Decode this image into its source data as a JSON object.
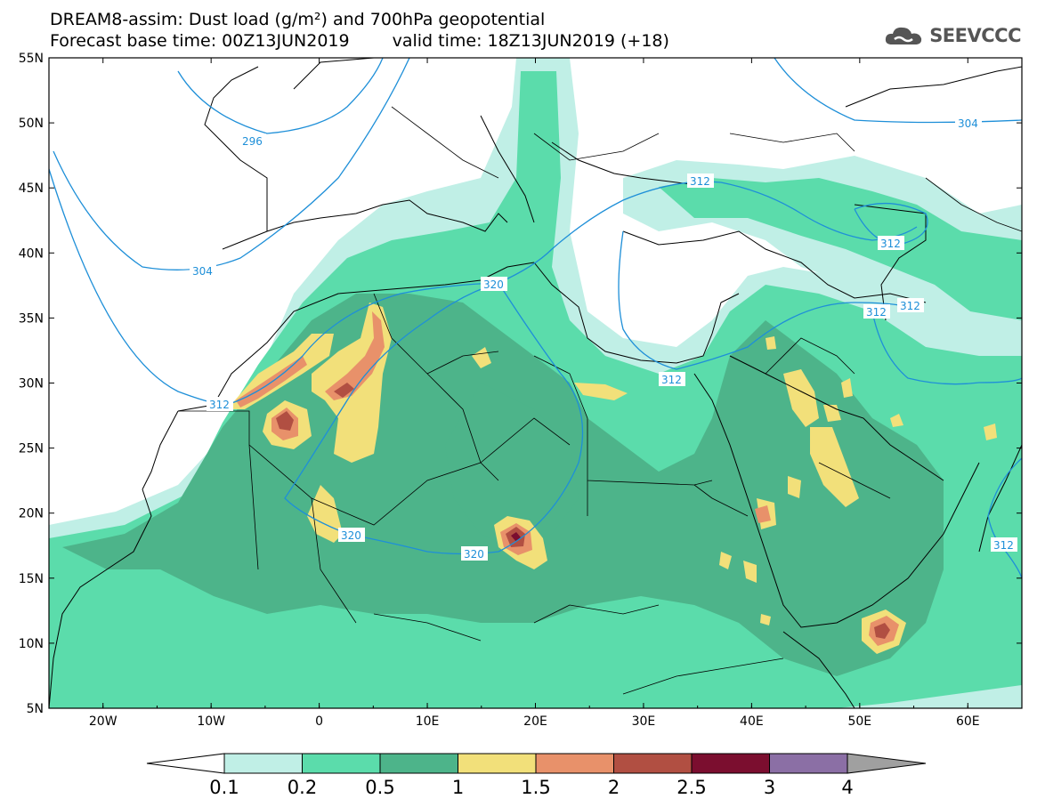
{
  "title": {
    "line1": "DREAM8-assim: Dust load (g/m²) and 700hPa geopotential",
    "line2a": "Forecast base time: 00Z13JUN2019",
    "line2b": "valid time: 18Z13JUN2019 (+18)"
  },
  "logo": {
    "text": "SEEVCCC",
    "icon": "cloud-icon"
  },
  "map": {
    "lat_labels": [
      "55N",
      "50N",
      "45N",
      "40N",
      "35N",
      "30N",
      "25N",
      "20N",
      "15N",
      "10N",
      "5N"
    ],
    "lon_labels": [
      "20W",
      "10W",
      "0",
      "10E",
      "20E",
      "30E",
      "40E",
      "50E",
      "60E"
    ],
    "lon_range": [
      -25,
      65
    ],
    "lat_range": [
      5,
      55
    ],
    "contour_labels": [
      {
        "id": "c296",
        "text": "296"
      },
      {
        "id": "c304a",
        "text": "304"
      },
      {
        "id": "c304b",
        "text": "304"
      },
      {
        "id": "c312a",
        "text": "312"
      },
      {
        "id": "c312b",
        "text": "312"
      },
      {
        "id": "c312c",
        "text": "312"
      },
      {
        "id": "c312d",
        "text": "312"
      },
      {
        "id": "c312e",
        "text": "312"
      },
      {
        "id": "c312f",
        "text": "312"
      },
      {
        "id": "c312g",
        "text": "312"
      },
      {
        "id": "c320a",
        "text": "320"
      },
      {
        "id": "c320b",
        "text": "320"
      },
      {
        "id": "c320c",
        "text": "320"
      }
    ],
    "colors": {
      "contour": "#1e8fd8",
      "level_0_1": "#c0efe6",
      "level_0_2": "#5bdcab",
      "level_0_5": "#4db48a",
      "level_1": "#f2e07a",
      "level_1_5": "#e8916a",
      "level_2": "#b14f42",
      "level_2_5": "#7b0e2f",
      "level_3": "#8b6fa5",
      "level_4": "#a0a0a0"
    }
  },
  "colorbar": {
    "labels": [
      "0.1",
      "0.2",
      "0.5",
      "1",
      "1.5",
      "2",
      "2.5",
      "3",
      "4"
    ],
    "colors": [
      "#c0efe6",
      "#5bdcab",
      "#4db48a",
      "#f2e07a",
      "#e8916a",
      "#b14f42",
      "#7b0e2f",
      "#8b6fa5"
    ]
  }
}
